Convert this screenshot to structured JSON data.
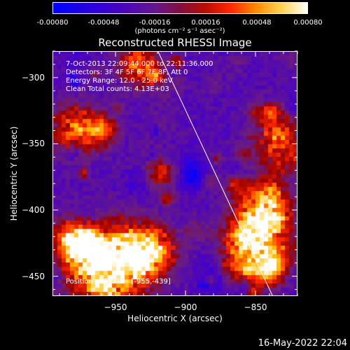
{
  "chart_data": {
    "type": "heatmap",
    "title": "Reconstructed RHESSI Image",
    "xlabel": "Heliocentric X (arcsec)",
    "ylabel": "Heliocentric Y (arcsec)",
    "xlim": [
      -995,
      -820
    ],
    "ylim": [
      -465,
      -280
    ],
    "xticks": [
      -950,
      -900,
      -850
    ],
    "yticks": [
      -300,
      -350,
      -400,
      -450
    ],
    "colorbar": {
      "ticks": [
        "-0.00080",
        "-0.00048",
        "-0.00016",
        "0.00016",
        "0.00048",
        "0.00080"
      ],
      "units": "(photons cm⁻² s⁻¹ asec⁻²)",
      "range": [
        -0.0008,
        0.0008
      ]
    },
    "annotations": [
      "7-Oct-2013 22:09:44.000 to 22:11:36.000",
      "Detectors: 3F 4F 5F 6F 7F 8F, Att 0",
      "Energy Range: 12.0 - 25.0 keV",
      "Clean     Total counts: 4.13E+03"
    ],
    "peak_label": "Position of Peak = [-955,-439]",
    "limb_line": {
      "x": [
        -920,
        -838
      ],
      "y": [
        -280,
        -465
      ]
    },
    "grid": false
  },
  "footer": "16-May-2022 22:04"
}
